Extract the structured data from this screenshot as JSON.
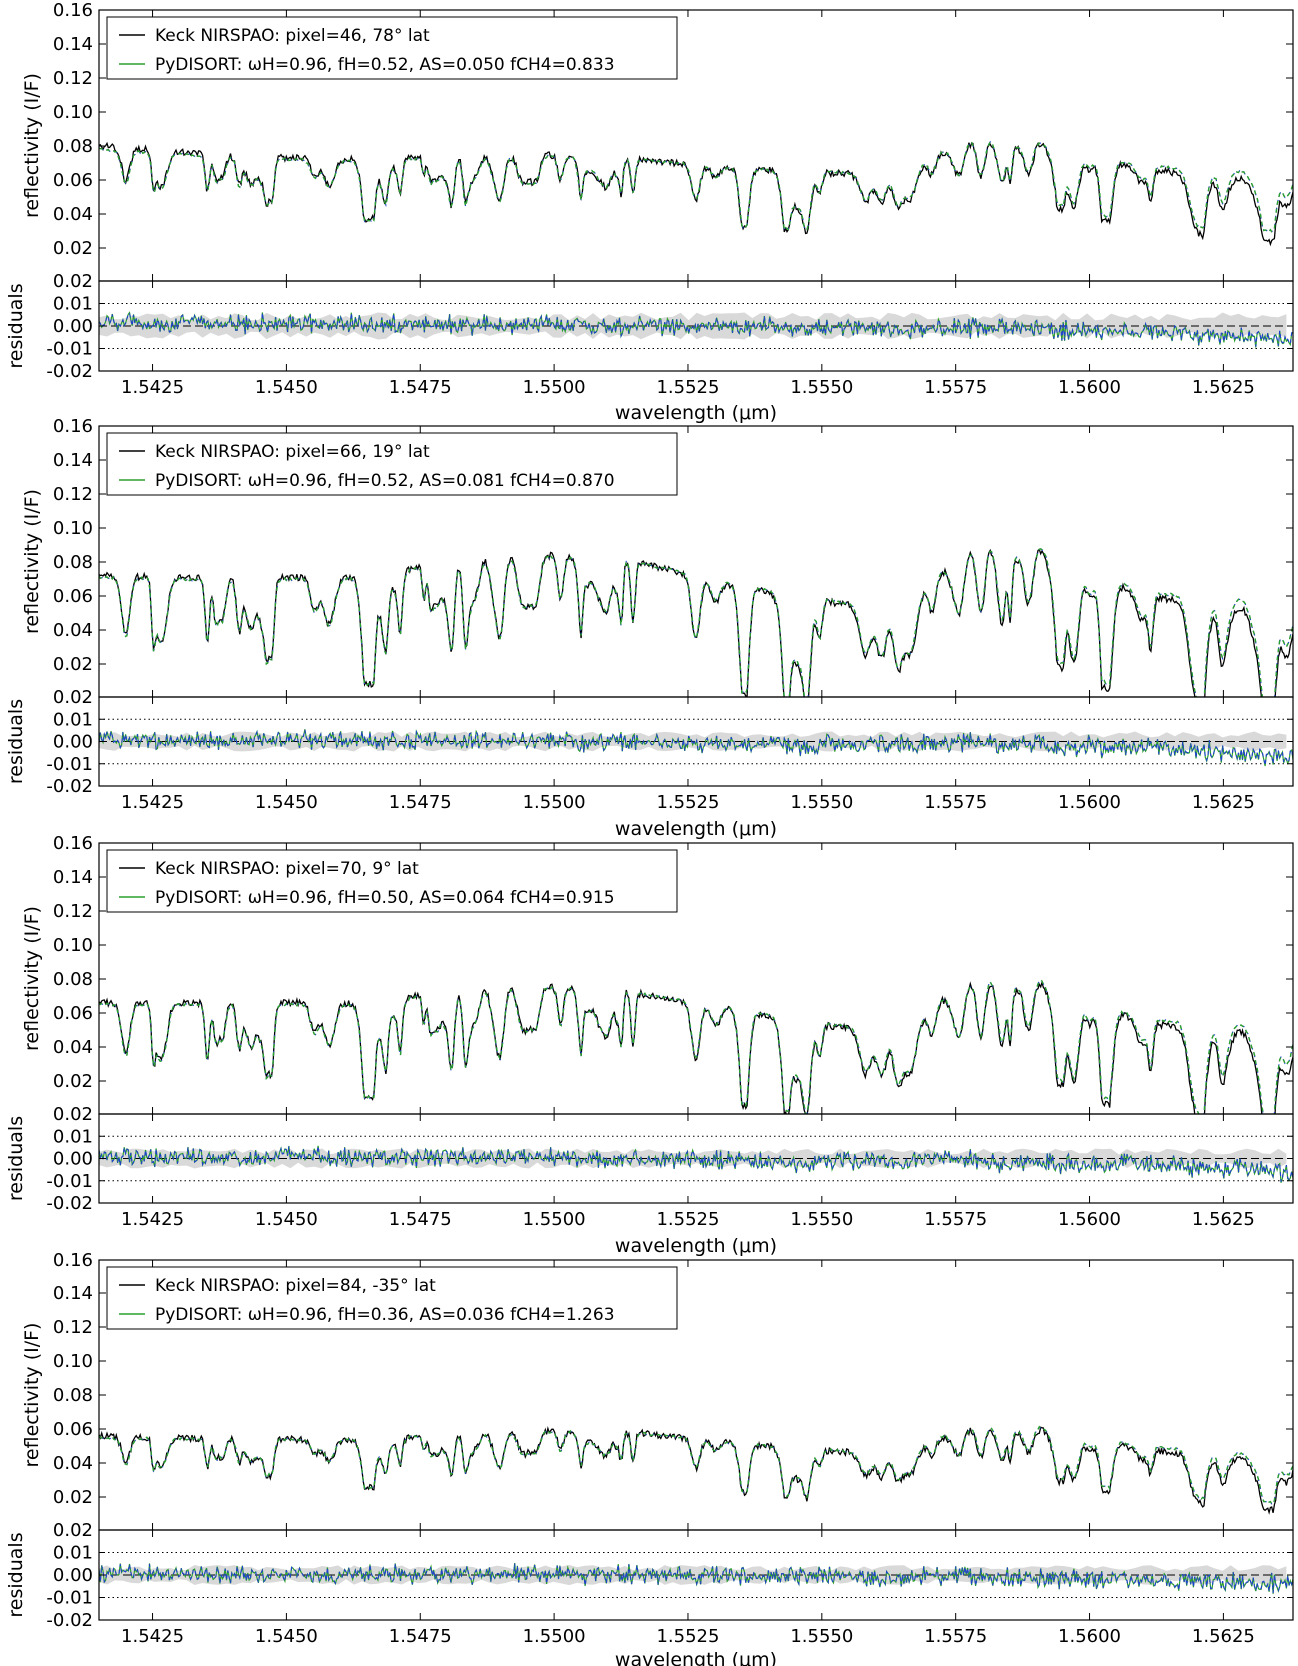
{
  "chart_data": [
    {
      "type": "line",
      "panel": 1,
      "xlabel": "wavelength (μm)",
      "ylabel": "reflectivity (I/F)",
      "residual_ylabel": "residuals",
      "xlim": [
        1.5415,
        1.5638
      ],
      "ylim": [
        0.0,
        0.16
      ],
      "residual_ylim": [
        -0.02,
        0.02
      ],
      "x_ticks": [
        "1.5425",
        "1.5450",
        "1.5475",
        "1.5500",
        "1.5525",
        "1.5550",
        "1.5575",
        "1.5600",
        "1.5625"
      ],
      "y_ticks": [
        "0.02",
        "0.04",
        "0.06",
        "0.08",
        "0.10",
        "0.12",
        "0.14",
        "0.16"
      ],
      "residual_y_ticks": [
        "0.02",
        "0.01",
        "0.00",
        "-0.01",
        "-0.02"
      ],
      "legend": {
        "placement": "top-left",
        "entries": [
          {
            "label": "Keck NIRSPAO: pixel=46,  78° lat",
            "color": "#000000"
          },
          {
            "label": "PyDISORT: ωH=0.96,  fH=0.52,  AS=0.050  fCH4=0.833",
            "color": "#2ca02c"
          }
        ]
      },
      "series": [
        {
          "name": "Keck NIRSPAO: pixel=46,  78° lat",
          "color": "#000000",
          "x": [
            1.5415,
            1.544,
            1.5465,
            1.549,
            1.5515,
            1.554,
            1.5565,
            1.5575,
            1.5585,
            1.561,
            1.5638
          ],
          "values": [
            0.08,
            0.074,
            0.072,
            0.076,
            0.072,
            0.066,
            0.062,
            0.082,
            0.086,
            0.066,
            0.058
          ]
        },
        {
          "name": "PyDISORT: ωH=0.96,  fH=0.52,  AS=0.050  fCH4=0.833",
          "color": "#2ca02c",
          "x": [
            1.5415,
            1.544,
            1.5465,
            1.549,
            1.5515,
            1.554,
            1.5565,
            1.5575,
            1.5585,
            1.561,
            1.5638
          ],
          "values": [
            0.078,
            0.073,
            0.071,
            0.075,
            0.072,
            0.066,
            0.063,
            0.082,
            0.087,
            0.068,
            0.064
          ]
        }
      ],
      "residuals": {
        "noise_band": 0.004,
        "reference_lines": [
          0.01,
          0.0,
          -0.01
        ]
      }
    },
    {
      "type": "line",
      "panel": 2,
      "xlabel": "wavelength (μm)",
      "ylabel": "reflectivity (I/F)",
      "residual_ylabel": "residuals",
      "xlim": [
        1.5415,
        1.5638
      ],
      "ylim": [
        0.01,
        0.16
      ],
      "residual_ylim": [
        -0.02,
        0.02
      ],
      "x_ticks": [
        "1.5425",
        "1.5450",
        "1.5475",
        "1.5500",
        "1.5525",
        "1.5550",
        "1.5575",
        "1.5600",
        "1.5625"
      ],
      "y_ticks": [
        "0.02",
        "0.04",
        "0.06",
        "0.08",
        "0.10",
        "0.12",
        "0.14",
        "0.16"
      ],
      "residual_y_ticks": [
        "0.02",
        "0.01",
        "0.00",
        "-0.01",
        "-0.02"
      ],
      "legend": {
        "placement": "top-left",
        "entries": [
          {
            "label": "Keck NIRSPAO: pixel=66,  19° lat",
            "color": "#000000"
          },
          {
            "label": "PyDISORT: ωH=0.96,  fH=0.52,  AS=0.081  fCH4=0.870",
            "color": "#2ca02c"
          }
        ]
      },
      "series": [
        {
          "name": "Keck NIRSPAO: pixel=66,  19° lat",
          "color": "#000000",
          "x": [
            1.5415,
            1.544,
            1.5465,
            1.549,
            1.5515,
            1.554,
            1.5565,
            1.5575,
            1.5585,
            1.561,
            1.5638
          ],
          "values": [
            0.072,
            0.07,
            0.072,
            0.086,
            0.08,
            0.062,
            0.05,
            0.084,
            0.096,
            0.06,
            0.05
          ]
        },
        {
          "name": "PyDISORT: ωH=0.96,  fH=0.52,  AS=0.081  fCH4=0.870",
          "color": "#2ca02c",
          "x": [
            1.5415,
            1.544,
            1.5465,
            1.549,
            1.5515,
            1.554,
            1.5565,
            1.5575,
            1.5585,
            1.561,
            1.5638
          ],
          "values": [
            0.071,
            0.069,
            0.071,
            0.085,
            0.08,
            0.063,
            0.051,
            0.084,
            0.097,
            0.062,
            0.056
          ]
        }
      ],
      "residuals": {
        "noise_band": 0.003,
        "reference_lines": [
          0.01,
          0.0,
          -0.01
        ]
      }
    },
    {
      "type": "line",
      "panel": 3,
      "xlabel": "wavelength (μm)",
      "ylabel": "reflectivity (I/F)",
      "residual_ylabel": "residuals",
      "xlim": [
        1.5415,
        1.5638
      ],
      "ylim": [
        0.01,
        0.16
      ],
      "residual_ylim": [
        -0.02,
        0.02
      ],
      "x_ticks": [
        "1.5425",
        "1.5450",
        "1.5475",
        "1.5500",
        "1.5525",
        "1.5550",
        "1.5575",
        "1.5600",
        "1.5625"
      ],
      "y_ticks": [
        "0.02",
        "0.04",
        "0.06",
        "0.08",
        "0.10",
        "0.12",
        "0.14",
        "0.16"
      ],
      "residual_y_ticks": [
        "0.02",
        "0.01",
        "0.00",
        "-0.01",
        "-0.02"
      ],
      "legend": {
        "placement": "top-left",
        "entries": [
          {
            "label": "Keck NIRSPAO: pixel=70,    9° lat",
            "color": "#000000"
          },
          {
            "label": "PyDISORT: ωH=0.96,  fH=0.50,  AS=0.064  fCH4=0.915",
            "color": "#2ca02c"
          }
        ]
      },
      "series": [
        {
          "name": "Keck NIRSPAO: pixel=70,    9° lat",
          "color": "#000000",
          "x": [
            1.5415,
            1.544,
            1.5465,
            1.549,
            1.5515,
            1.554,
            1.5565,
            1.5575,
            1.5585,
            1.561,
            1.5638
          ],
          "values": [
            0.066,
            0.066,
            0.066,
            0.078,
            0.072,
            0.058,
            0.046,
            0.076,
            0.086,
            0.054,
            0.046
          ]
        },
        {
          "name": "PyDISORT: ωH=0.96,  fH=0.50,  AS=0.064  fCH4=0.915",
          "color": "#2ca02c",
          "x": [
            1.5415,
            1.544,
            1.5465,
            1.549,
            1.5515,
            1.554,
            1.5565,
            1.5575,
            1.5585,
            1.561,
            1.5638
          ],
          "values": [
            0.065,
            0.065,
            0.065,
            0.077,
            0.072,
            0.059,
            0.047,
            0.076,
            0.087,
            0.056,
            0.052
          ]
        }
      ],
      "residuals": {
        "noise_band": 0.003,
        "reference_lines": [
          0.01,
          0.0,
          -0.01
        ]
      }
    },
    {
      "type": "line",
      "panel": 4,
      "xlabel": "wavelength (μm)",
      "ylabel": "reflectivity (I/F)",
      "residual_ylabel": "residuals",
      "xlim": [
        1.5415,
        1.5638
      ],
      "ylim": [
        0.01,
        0.16
      ],
      "residual_ylim": [
        -0.02,
        0.02
      ],
      "x_ticks": [
        "1.5425",
        "1.5450",
        "1.5475",
        "1.5500",
        "1.5525",
        "1.5550",
        "1.5575",
        "1.5600",
        "1.5625"
      ],
      "y_ticks": [
        "0.02",
        "0.04",
        "0.06",
        "0.08",
        "0.10",
        "0.12",
        "0.14",
        "0.16"
      ],
      "residual_y_ticks": [
        "0.02",
        "0.01",
        "0.00",
        "-0.01",
        "-0.02"
      ],
      "legend": {
        "placement": "top-left",
        "entries": [
          {
            "label": "Keck NIRSPAO: pixel=84, -35° lat",
            "color": "#000000"
          },
          {
            "label": "PyDISORT: ωH=0.96,  fH=0.36,  AS=0.036  fCH4=1.263",
            "color": "#2ca02c"
          }
        ]
      },
      "series": [
        {
          "name": "Keck NIRSPAO: pixel=84, -35° lat",
          "color": "#000000",
          "x": [
            1.5415,
            1.544,
            1.5465,
            1.549,
            1.5515,
            1.554,
            1.5565,
            1.5575,
            1.5585,
            1.561,
            1.5638
          ],
          "values": [
            0.056,
            0.054,
            0.054,
            0.06,
            0.058,
            0.05,
            0.044,
            0.06,
            0.064,
            0.048,
            0.04
          ]
        },
        {
          "name": "PyDISORT: ωH=0.96,  fH=0.36,  AS=0.036  fCH4=1.263",
          "color": "#2ca02c",
          "x": [
            1.5415,
            1.544,
            1.5465,
            1.549,
            1.5515,
            1.554,
            1.5565,
            1.5575,
            1.5585,
            1.561,
            1.5638
          ],
          "values": [
            0.055,
            0.054,
            0.054,
            0.059,
            0.058,
            0.05,
            0.045,
            0.06,
            0.065,
            0.05,
            0.044
          ]
        }
      ],
      "residuals": {
        "noise_band": 0.003,
        "reference_lines": [
          0.01,
          0.0,
          -0.01
        ]
      }
    }
  ]
}
